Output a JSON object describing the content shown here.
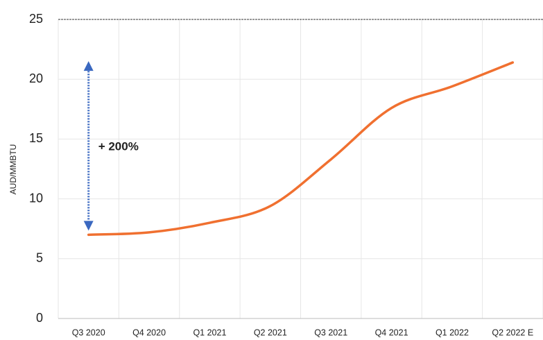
{
  "chart_data": {
    "type": "line",
    "y_label": "AUD/MMBTU",
    "annotation": "+ 200%",
    "categories": [
      "Q3 2020",
      "Q4 2020",
      "Q1 2021",
      "Q2 2021",
      "Q3 2021",
      "Q4 2021",
      "Q1 2022",
      "Q2 2022 E"
    ],
    "values": [
      7.0,
      7.2,
      8.0,
      9.4,
      13.3,
      17.6,
      19.4,
      21.4
    ],
    "color": "#f07030",
    "ylim": [
      0,
      25
    ],
    "yticks": [
      0,
      5,
      10,
      15,
      20,
      25
    ],
    "grid": true
  }
}
